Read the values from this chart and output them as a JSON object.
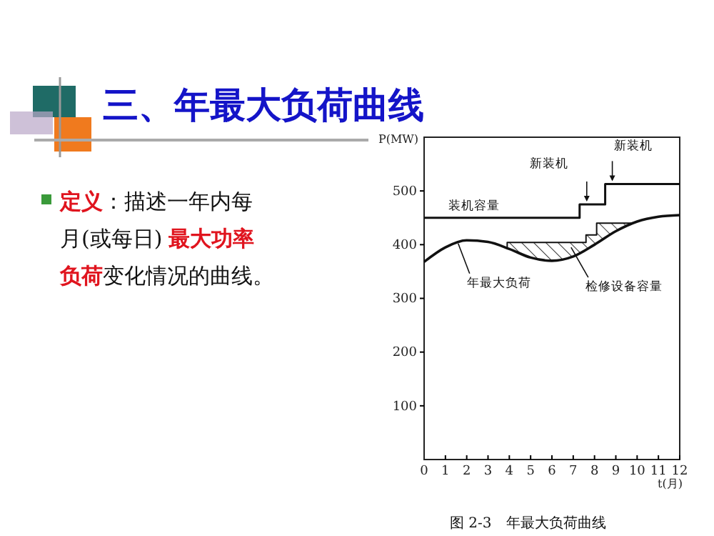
{
  "chart_data": {
    "type": "line",
    "title": "三、年最大负荷曲线",
    "xlabel": "t(月)",
    "ylabel": "P(MW)",
    "xlim": [
      0,
      12
    ],
    "xticks": [
      0,
      1,
      2,
      3,
      4,
      5,
      6,
      7,
      8,
      9,
      10,
      11,
      12
    ],
    "ylim": [
      0,
      600
    ],
    "yticks": [
      100,
      200,
      300,
      400,
      500
    ],
    "grid": false,
    "marker": "none",
    "line_style": "solid",
    "series": [
      {
        "color": "#111111",
        "x": [
          0,
          1,
          2,
          3,
          4,
          5,
          6,
          7,
          8,
          9,
          10,
          11,
          12
        ],
        "values": [
          368,
          395,
          408,
          405,
          392,
          376,
          370,
          378,
          400,
          425,
          443,
          452,
          455
        ]
      },
      {
        "type": "step",
        "color": "#111111",
        "x": [
          0,
          7.3,
          8.5,
          12
        ],
        "values": [
          450,
          475,
          513,
          513
        ]
      },
      {
        "type": "area",
        "color": "#111111",
        "x": [
          3.9,
          7.6,
          7.6,
          8.1,
          8.1,
          9.8
        ],
        "values": [
          404,
          404,
          418,
          418,
          440,
          440
        ]
      }
    ],
    "annotations": [
      "定义",
      "：描述一年内每",
      "月(或每日)",
      "最大功率",
      "负荷",
      "变化情况的曲线。",
      "图 2-3　年最大负荷曲线",
      {
        "text": "装机容量",
        "x": 3,
        "y": 450
      },
      {
        "text": "新装机",
        "x": 7.3,
        "y": 475
      },
      {
        "text": "新装机",
        "x": 8.5,
        "y": 513
      },
      {
        "text": "年最大负荷",
        "x": 1.6,
        "y": 402
      },
      {
        "text": "检修设备容量",
        "x": 6.9,
        "y": 395
      }
    ]
  }
}
